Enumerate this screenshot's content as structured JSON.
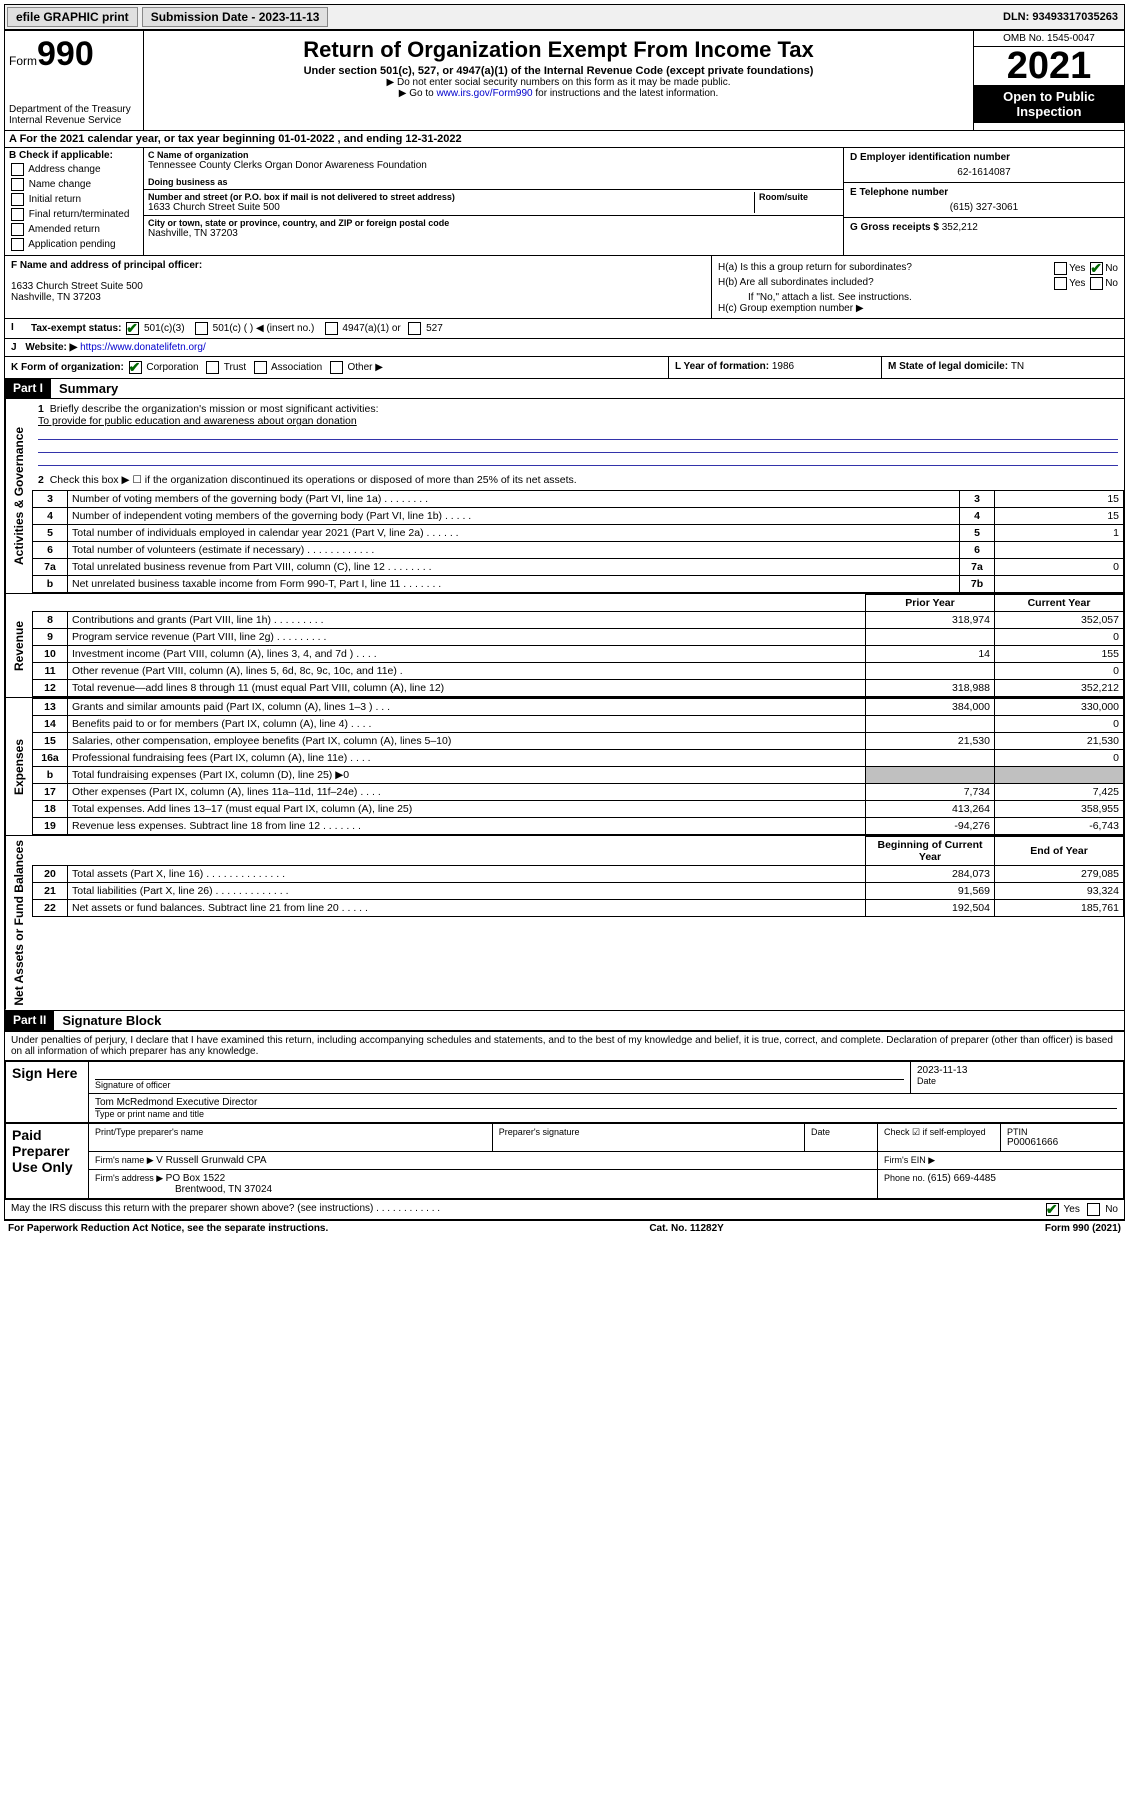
{
  "topbar": {
    "efile": "efile GRAPHIC print",
    "sub_label": "Submission Date - ",
    "sub_date": "2023-11-13",
    "dln_label": "DLN: ",
    "dln": "93493317035263"
  },
  "header": {
    "form_word": "Form",
    "form_num": "990",
    "dept": "Department of the Treasury",
    "irs": "Internal Revenue Service",
    "title": "Return of Organization Exempt From Income Tax",
    "sub1": "Under section 501(c), 527, or 4947(a)(1) of the Internal Revenue Code (except private foundations)",
    "sub2": "▶ Do not enter social security numbers on this form as it may be made public.",
    "sub3_pre": "▶ Go to ",
    "sub3_link": "www.irs.gov/Form990",
    "sub3_post": " for instructions and the latest information.",
    "omb": "OMB No. 1545-0047",
    "year": "2021",
    "open": "Open to Public Inspection"
  },
  "secA": {
    "text": "A For the 2021 calendar year, or tax year beginning 01-01-2022    , and ending 12-31-2022"
  },
  "colB": {
    "head": "B Check if applicable:",
    "items": [
      "Address change",
      "Name change",
      "Initial return",
      "Final return/terminated",
      "Amended return",
      "Application pending"
    ]
  },
  "colC": {
    "c_lab": "C Name of organization",
    "c_val": "Tennessee County Clerks Organ Donor Awareness Foundation",
    "dba_lab": "Doing business as",
    "addr_lab": "Number and street (or P.O. box if mail is not delivered to street address)",
    "room_lab": "Room/suite",
    "addr_val": "1633 Church Street Suite 500",
    "city_lab": "City or town, state or province, country, and ZIP or foreign postal code",
    "city_val": "Nashville, TN  37203"
  },
  "colD": {
    "d_lab": "D Employer identification number",
    "d_val": "62-1614087",
    "e_lab": "E Telephone number",
    "e_val": "(615) 327-3061",
    "g_lab": "G Gross receipts $ ",
    "g_val": "352,212"
  },
  "rowF": {
    "f_lab": "F Name and address of principal officer:",
    "f_addr1": "1633 Church Street Suite 500",
    "f_addr2": "Nashville, TN  37203"
  },
  "rowH": {
    "ha": "H(a)  Is this a group return for subordinates?",
    "hb": "H(b)  Are all subordinates included?",
    "hb2": "If \"No,\" attach a list. See instructions.",
    "hc": "H(c)  Group exemption number ▶",
    "yes": "Yes",
    "no": "No"
  },
  "rowI": {
    "lab": "Tax-exempt status:",
    "o1": "501(c)(3)",
    "o2": "501(c) (  ) ◀ (insert no.)",
    "o3": "4947(a)(1) or",
    "o4": "527"
  },
  "rowJ": {
    "lab": "Website: ▶",
    "val": "https://www.donatelifetn.org/"
  },
  "rowK": {
    "k_lab": "K Form of organization:",
    "k_opts": [
      "Corporation",
      "Trust",
      "Association",
      "Other ▶"
    ],
    "l_lab": "L Year of formation: ",
    "l_val": "1986",
    "m_lab": "M State of legal domicile: ",
    "m_val": "TN"
  },
  "part1": {
    "hdr": "Part I",
    "title": "Summary",
    "l1": "Briefly describe the organization's mission or most significant activities:",
    "l1val": "To provide for public education and awareness about organ donation",
    "l2": "Check this box ▶ ☐  if the organization discontinued its operations or disposed of more than 25% of its net assets.",
    "sideA": "Activities & Governance",
    "sideR": "Revenue",
    "sideE": "Expenses",
    "sideN": "Net Assets or Fund Balances",
    "head_prior": "Prior Year",
    "head_curr": "Current Year",
    "head_beg": "Beginning of Current Year",
    "head_end": "End of Year",
    "rows_gov": [
      {
        "n": "3",
        "d": "Number of voting members of the governing body (Part VI, line 1a)   .    .    .    .    .    .    .    .",
        "b": "3",
        "v": "15"
      },
      {
        "n": "4",
        "d": "Number of independent voting members of the governing body (Part VI, line 1b)   .    .    .    .    .",
        "b": "4",
        "v": "15"
      },
      {
        "n": "5",
        "d": "Total number of individuals employed in calendar year 2021 (Part V, line 2a)   .    .    .    .    .    .",
        "b": "5",
        "v": "1"
      },
      {
        "n": "6",
        "d": "Total number of volunteers (estimate if necessary)    .    .    .    .    .    .    .    .    .    .    .    .",
        "b": "6",
        "v": ""
      },
      {
        "n": "7a",
        "d": "Total unrelated business revenue from Part VIII, column (C), line 12   .    .    .    .    .    .    .    .",
        "b": "7a",
        "v": "0"
      },
      {
        "n": "b",
        "d": "Net unrelated business taxable income from Form 990-T, Part I, line 11    .    .    .    .    .    .    .",
        "b": "7b",
        "v": ""
      }
    ],
    "rows_rev": [
      {
        "n": "8",
        "d": "Contributions and grants (Part VIII, line 1h)    .    .    .    .    .    .    .    .    .",
        "p": "318,974",
        "c": "352,057"
      },
      {
        "n": "9",
        "d": "Program service revenue (Part VIII, line 2g)    .    .    .    .    .    .    .    .    .",
        "p": "",
        "c": "0"
      },
      {
        "n": "10",
        "d": "Investment income (Part VIII, column (A), lines 3, 4, and 7d )    .    .    .    .",
        "p": "14",
        "c": "155"
      },
      {
        "n": "11",
        "d": "Other revenue (Part VIII, column (A), lines 5, 6d, 8c, 9c, 10c, and 11e)    .",
        "p": "",
        "c": "0"
      },
      {
        "n": "12",
        "d": "Total revenue—add lines 8 through 11 (must equal Part VIII, column (A), line 12)",
        "p": "318,988",
        "c": "352,212"
      }
    ],
    "rows_exp": [
      {
        "n": "13",
        "d": "Grants and similar amounts paid (Part IX, column (A), lines 1–3 )    .    .    .",
        "p": "384,000",
        "c": "330,000"
      },
      {
        "n": "14",
        "d": "Benefits paid to or for members (Part IX, column (A), line 4)    .    .    .    .",
        "p": "",
        "c": "0"
      },
      {
        "n": "15",
        "d": "Salaries, other compensation, employee benefits (Part IX, column (A), lines 5–10)",
        "p": "21,530",
        "c": "21,530"
      },
      {
        "n": "16a",
        "d": "Professional fundraising fees (Part IX, column (A), line 11e)    .    .    .    .",
        "p": "",
        "c": "0"
      },
      {
        "n": "b",
        "d": "Total fundraising expenses (Part IX, column (D), line 25) ▶0",
        "p": "GRAY",
        "c": "GRAY"
      },
      {
        "n": "17",
        "d": "Other expenses (Part IX, column (A), lines 11a–11d, 11f–24e)    .    .    .    .",
        "p": "7,734",
        "c": "7,425"
      },
      {
        "n": "18",
        "d": "Total expenses. Add lines 13–17 (must equal Part IX, column (A), line 25)",
        "p": "413,264",
        "c": "358,955"
      },
      {
        "n": "19",
        "d": "Revenue less expenses. Subtract line 18 from line 12    .    .    .    .    .    .    .",
        "p": "-94,276",
        "c": "-6,743"
      }
    ],
    "rows_net": [
      {
        "n": "20",
        "d": "Total assets (Part X, line 16)    .    .    .    .    .    .    .    .    .    .    .    .    .    .",
        "p": "284,073",
        "c": "279,085"
      },
      {
        "n": "21",
        "d": "Total liabilities (Part X, line 26)    .    .    .    .    .    .    .    .    .    .    .    .    .",
        "p": "91,569",
        "c": "93,324"
      },
      {
        "n": "22",
        "d": "Net assets or fund balances. Subtract line 21 from line 20    .    .    .    .    .",
        "p": "192,504",
        "c": "185,761"
      }
    ]
  },
  "part2": {
    "hdr": "Part II",
    "title": "Signature Block",
    "penalty": "Under penalties of perjury, I declare that I have examined this return, including accompanying schedules and statements, and to the best of my knowledge and belief, it is true, correct, and complete. Declaration of preparer (other than officer) is based on all information of which preparer has any knowledge.",
    "sign_here": "Sign Here",
    "sig_officer": "Signature of officer",
    "sig_date": "Date",
    "sig_dateval": "2023-11-13",
    "sig_name": "Tom McRedmond  Executive Director",
    "sig_name_lab": "Type or print name and title",
    "paid": "Paid Preparer Use Only",
    "pp_name_lab": "Print/Type preparer's name",
    "pp_sig_lab": "Preparer's signature",
    "pp_date_lab": "Date",
    "pp_check": "Check ☑ if self-employed",
    "pp_ptin_lab": "PTIN",
    "pp_ptin": "P00061666",
    "firm_name_lab": "Firm's name    ▶ ",
    "firm_name": "V Russell Grunwald CPA",
    "firm_ein_lab": "Firm's EIN ▶",
    "firm_addr_lab": "Firm's address ▶ ",
    "firm_addr1": "PO Box 1522",
    "firm_addr2": "Brentwood, TN  37024",
    "firm_phone_lab": "Phone no. ",
    "firm_phone": "(615) 669-4485",
    "may": "May the IRS discuss this return with the preparer shown above? (see instructions)    .    .    .    .    .    .    .    .    .    .    .    .",
    "may_yes": "Yes",
    "may_no": "No"
  },
  "footer": {
    "l": "For Paperwork Reduction Act Notice, see the separate instructions.",
    "m": "Cat. No. 11282Y",
    "r": "Form 990 (2021)"
  },
  "colors": {
    "link": "#0000cc",
    "check": "#006600",
    "gray": "#c0c0c0"
  }
}
